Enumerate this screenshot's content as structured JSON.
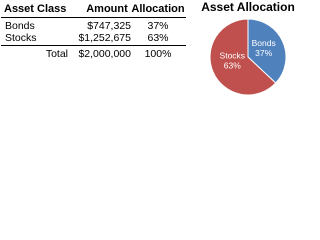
{
  "table": {
    "header": [
      "Asset Class",
      "Amount",
      "Allocation"
    ],
    "rows": [
      [
        "Bonds",
        "$747,325",
        "37%"
      ],
      [
        "Stocks",
        "$1,252,675",
        "63%"
      ],
      [
        "Total",
        "$2,000,000",
        "100%"
      ]
    ]
  },
  "chart_data": {
    "type": "pie",
    "title": "Asset Allocation",
    "categories": [
      "Bonds",
      "Stocks"
    ],
    "values": [
      37,
      63
    ],
    "value_labels": [
      "37%",
      "63%"
    ],
    "colors": [
      "#4f81bd",
      "#c0504d"
    ]
  }
}
